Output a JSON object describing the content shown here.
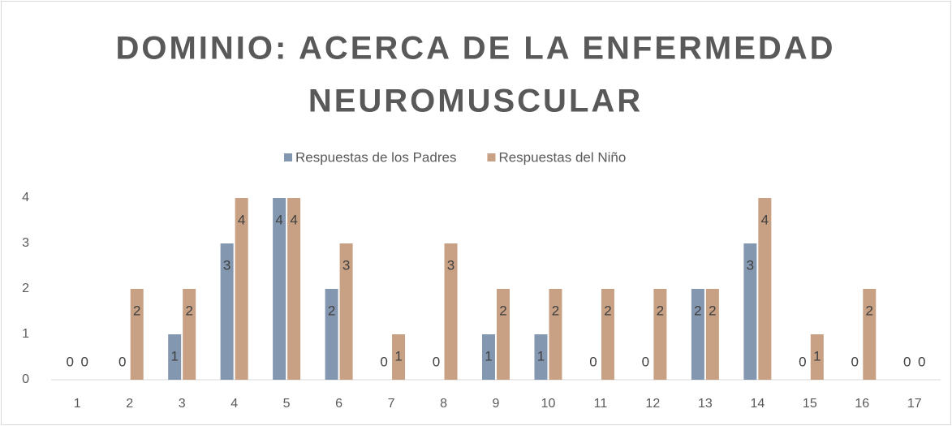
{
  "chart_data": {
    "type": "bar",
    "title": [
      "DOMINIO: ACERCA DE LA ENFERMEDAD",
      "NEUROMUSCULAR"
    ],
    "categories": [
      "1",
      "2",
      "3",
      "4",
      "5",
      "6",
      "7",
      "8",
      "9",
      "10",
      "11",
      "12",
      "13",
      "14",
      "15",
      "16",
      "17"
    ],
    "series": [
      {
        "name": "Respuestas de los Padres",
        "color": "#8497b0",
        "values": [
          0,
          0,
          1,
          3,
          4,
          2,
          0,
          0,
          1,
          1,
          0,
          0,
          2,
          3,
          0,
          0,
          0
        ]
      },
      {
        "name": "Respuestas del Niño",
        "color": "#c8a083",
        "values": [
          0,
          2,
          2,
          4,
          4,
          3,
          1,
          3,
          2,
          2,
          2,
          2,
          2,
          4,
          1,
          2,
          0
        ]
      }
    ],
    "ylim": [
      0,
      4
    ],
    "yticks": [
      0,
      1,
      2,
      3,
      4
    ],
    "grid": false,
    "legend": "top"
  }
}
